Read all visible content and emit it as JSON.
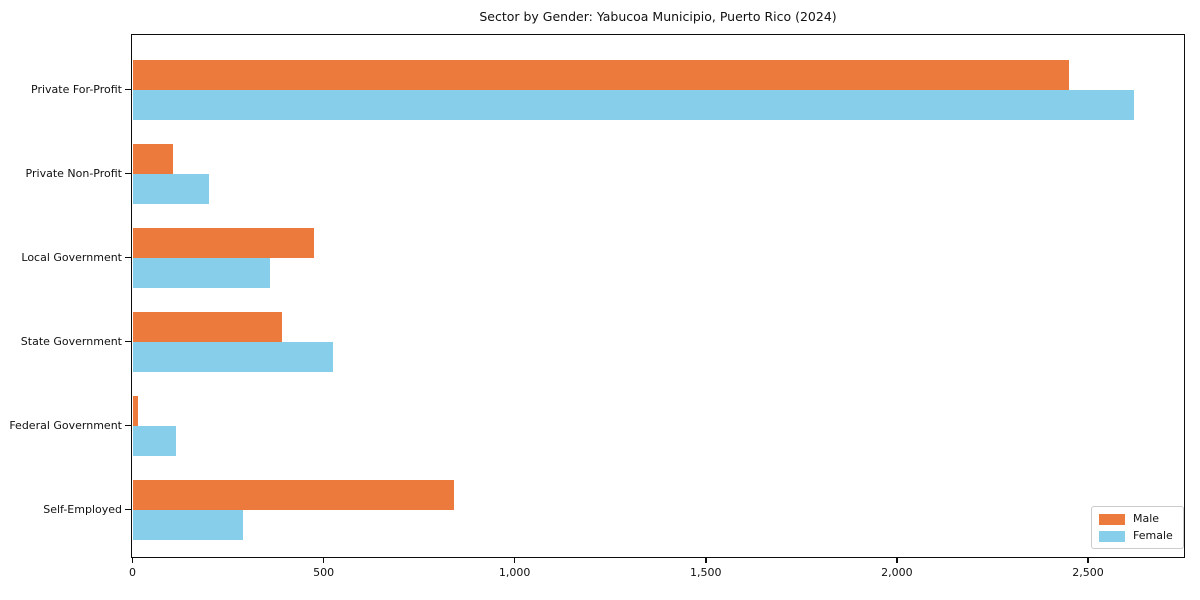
{
  "title": "Sector by Gender: Yabucoa Municipio, Puerto Rico (2024)",
  "colors": {
    "male": "#ec7a3c",
    "female": "#87ceeb",
    "spine": "#0d0d0d",
    "legend_border": "#cccccc"
  },
  "legend": {
    "items": [
      {
        "label": "Male",
        "color": "#ec7a3c"
      },
      {
        "label": "Female",
        "color": "#87ceeb"
      }
    ]
  },
  "chart_data": {
    "type": "bar",
    "orientation": "horizontal",
    "title": "Sector by Gender: Yabucoa Municipio, Puerto Rico (2024)",
    "categories": [
      "Private For-Profit",
      "Private Non-Profit",
      "Local Government",
      "State Government",
      "Federal Government",
      "Self-Employed"
    ],
    "series": [
      {
        "name": "Male",
        "color": "#ec7a3c",
        "values": [
          2450,
          105,
          475,
          390,
          15,
          840
        ]
      },
      {
        "name": "Female",
        "color": "#87ceeb",
        "values": [
          2620,
          200,
          360,
          525,
          115,
          290
        ]
      }
    ],
    "xlabel": "",
    "ylabel": "",
    "xlim": [
      0,
      2750
    ],
    "x_tick_values": [
      0,
      500,
      1000,
      1500,
      2000,
      2500
    ],
    "x_tick_labels": [
      "0",
      "500",
      "1,000",
      "1,500",
      "2,000",
      "2,500"
    ],
    "grid": false,
    "legend_position": "lower right"
  }
}
